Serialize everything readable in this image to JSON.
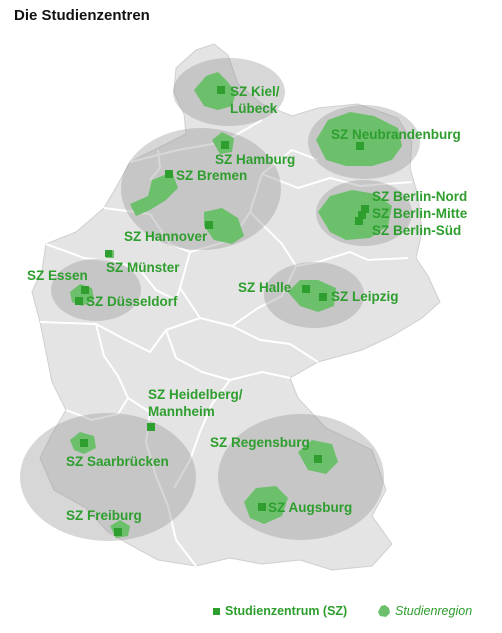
{
  "title": "Die Studienzentren",
  "colors": {
    "accent": "#2e9e2e",
    "region": "#6cc06c",
    "land": "#e4e4e4",
    "border": "#ffffff",
    "cluster": "rgba(150,150,150,0.38)"
  },
  "centers": [
    {
      "id": "kiel",
      "label_lines": [
        "SZ Kiel/",
        "Lübeck"
      ]
    },
    {
      "id": "hamburg",
      "label_lines": [
        "SZ Hamburg"
      ]
    },
    {
      "id": "bremen",
      "label_lines": [
        "SZ Bremen"
      ]
    },
    {
      "id": "hannover",
      "label_lines": [
        "SZ Hannover"
      ]
    },
    {
      "id": "neubrandenburg",
      "label_lines": [
        "SZ Neubrandenburg"
      ]
    },
    {
      "id": "berlin-nord",
      "label_lines": [
        "SZ Berlin-Nord"
      ]
    },
    {
      "id": "berlin-mitte",
      "label_lines": [
        "SZ Berlin-Mitte"
      ]
    },
    {
      "id": "berlin-sued",
      "label_lines": [
        "SZ Berlin-Süd"
      ]
    },
    {
      "id": "muenster",
      "label_lines": [
        "SZ Münster"
      ]
    },
    {
      "id": "essen",
      "label_lines": [
        "SZ Essen"
      ]
    },
    {
      "id": "duesseldorf",
      "label_lines": [
        "SZ Düsseldorf"
      ]
    },
    {
      "id": "halle",
      "label_lines": [
        "SZ Halle"
      ]
    },
    {
      "id": "leipzig",
      "label_lines": [
        "SZ Leipzig"
      ]
    },
    {
      "id": "heidelberg",
      "label_lines": [
        "SZ Heidelberg/",
        "Mannheim"
      ]
    },
    {
      "id": "regensburg",
      "label_lines": [
        "SZ Regensburg"
      ]
    },
    {
      "id": "saarbruecken",
      "label_lines": [
        "SZ Saarbrücken"
      ]
    },
    {
      "id": "augsburg",
      "label_lines": [
        "SZ Augsburg"
      ]
    },
    {
      "id": "freiburg",
      "label_lines": [
        "SZ Freiburg"
      ]
    }
  ],
  "legend": {
    "center": "Studienzentrum (SZ)",
    "region": "Studienregion",
    "region_icon": "region-blob-icon"
  }
}
